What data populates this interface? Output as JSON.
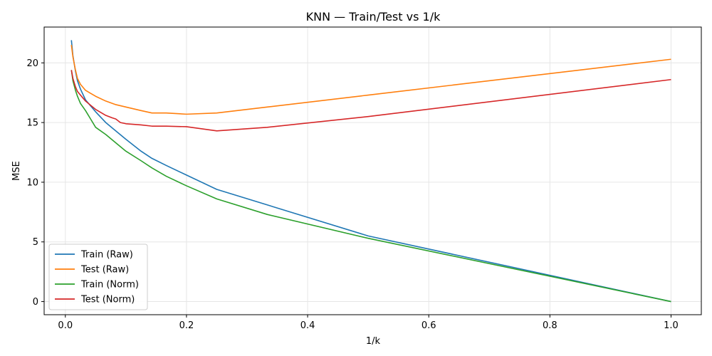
{
  "chart_data": {
    "type": "line",
    "title": "KNN — Train/Test vs 1/k",
    "xlabel": "1/k",
    "ylabel": "MSE",
    "xlim": [
      -0.035,
      1.05
    ],
    "ylim": [
      -1.1,
      23.0
    ],
    "x_ticks": [
      0.0,
      0.2,
      0.4,
      0.6,
      0.8,
      1.0
    ],
    "x_tick_labels": [
      "0.0",
      "0.2",
      "0.4",
      "0.6",
      "0.8",
      "1.0"
    ],
    "y_ticks": [
      0,
      5,
      10,
      15,
      20
    ],
    "y_tick_labels": [
      "0",
      "5",
      "10",
      "15",
      "20"
    ],
    "grid": true,
    "legend_position": "lower-left",
    "series": [
      {
        "name": "Train (Raw)",
        "color": "#1f77b4",
        "x": [
          0.01,
          0.0125,
          0.0167,
          0.02,
          0.025,
          0.0333,
          0.05,
          0.0667,
          0.0833,
          0.1,
          0.125,
          0.1429,
          0.1667,
          0.2,
          0.25,
          0.3333,
          0.5,
          1.0
        ],
        "y": [
          21.9,
          20.6,
          19.3,
          18.5,
          17.8,
          16.9,
          15.9,
          15.0,
          14.3,
          13.6,
          12.6,
          12.0,
          11.4,
          10.6,
          9.4,
          8.1,
          5.5,
          0.0
        ]
      },
      {
        "name": "Test (Raw)",
        "color": "#ff7f0e",
        "x": [
          0.01,
          0.0125,
          0.0167,
          0.02,
          0.025,
          0.0333,
          0.05,
          0.0667,
          0.0833,
          0.1,
          0.125,
          0.1429,
          0.1667,
          0.2,
          0.25,
          0.3333,
          0.5,
          1.0
        ],
        "y": [
          21.5,
          20.5,
          19.4,
          18.7,
          18.2,
          17.7,
          17.2,
          16.8,
          16.5,
          16.3,
          16.0,
          15.8,
          15.8,
          15.7,
          15.8,
          16.3,
          17.3,
          20.3
        ]
      },
      {
        "name": "Train (Norm)",
        "color": "#2ca02c",
        "x": [
          0.01,
          0.0125,
          0.0167,
          0.02,
          0.025,
          0.0333,
          0.05,
          0.0667,
          0.0833,
          0.1,
          0.125,
          0.1429,
          0.1667,
          0.2,
          0.25,
          0.3333,
          0.5,
          1.0
        ],
        "y": [
          19.4,
          18.5,
          17.7,
          17.2,
          16.6,
          16.0,
          14.6,
          14.0,
          13.3,
          12.6,
          11.8,
          11.2,
          10.5,
          9.7,
          8.6,
          7.3,
          5.3,
          0.0
        ]
      },
      {
        "name": "Test (Norm)",
        "color": "#d62728",
        "x": [
          0.01,
          0.0125,
          0.0167,
          0.02,
          0.025,
          0.0333,
          0.05,
          0.0667,
          0.0769,
          0.0833,
          0.0909,
          0.1,
          0.125,
          0.1429,
          0.1667,
          0.2,
          0.25,
          0.3333,
          0.5,
          1.0
        ],
        "y": [
          19.4,
          18.7,
          18.0,
          17.6,
          17.3,
          16.8,
          16.1,
          15.6,
          15.4,
          15.3,
          15.0,
          14.9,
          14.8,
          14.7,
          14.7,
          14.65,
          14.3,
          14.6,
          15.5,
          18.6
        ]
      }
    ]
  }
}
